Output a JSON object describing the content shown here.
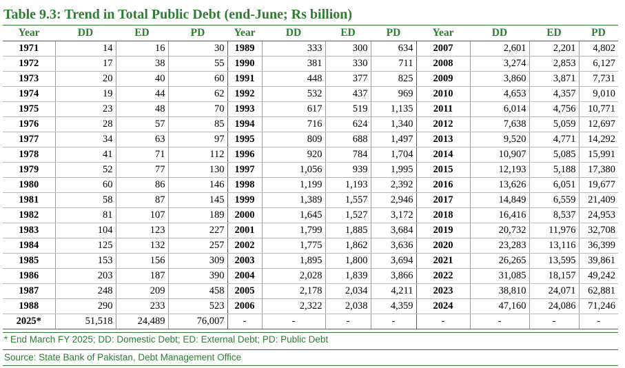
{
  "title": "Table 9.3: Trend in Total Public Debt (end-June; Rs billion)",
  "headers": [
    "Year",
    "DD",
    "ED",
    "PD",
    "Year",
    "DD",
    "ED",
    "PD",
    "Year",
    "DD",
    "ED",
    "PD"
  ],
  "rows": [
    [
      "1971",
      "14",
      "16",
      "30",
      "1989",
      "333",
      "300",
      "634",
      "2007",
      "2,601",
      "2,201",
      "4,802"
    ],
    [
      "1972",
      "17",
      "38",
      "55",
      "1990",
      "381",
      "330",
      "711",
      "2008",
      "3,274",
      "2,853",
      "6,127"
    ],
    [
      "1973",
      "20",
      "40",
      "60",
      "1991",
      "448",
      "377",
      "825",
      "2009",
      "3,860",
      "3,871",
      "7,731"
    ],
    [
      "1974",
      "19",
      "44",
      "62",
      "1992",
      "532",
      "437",
      "969",
      "2010",
      "4,653",
      "4,357",
      "9,010"
    ],
    [
      "1975",
      "23",
      "48",
      "70",
      "1993",
      "617",
      "519",
      "1,135",
      "2011",
      "6,014",
      "4,756",
      "10,771"
    ],
    [
      "1976",
      "28",
      "57",
      "85",
      "1994",
      "716",
      "624",
      "1,340",
      "2012",
      "7,638",
      "5,059",
      "12,697"
    ],
    [
      "1977",
      "34",
      "63",
      "97",
      "1995",
      "809",
      "688",
      "1,497",
      "2013",
      "9,520",
      "4,771",
      "14,292"
    ],
    [
      "1978",
      "41",
      "71",
      "112",
      "1996",
      "920",
      "784",
      "1,704",
      "2014",
      "10,907",
      "5,085",
      "15,991"
    ],
    [
      "1979",
      "52",
      "77",
      "130",
      "1997",
      "1,056",
      "939",
      "1,995",
      "2015",
      "12,193",
      "5,188",
      "17,380"
    ],
    [
      "1980",
      "60",
      "86",
      "146",
      "1998",
      "1,199",
      "1,193",
      "2,392",
      "2016",
      "13,626",
      "6,051",
      "19,677"
    ],
    [
      "1981",
      "58",
      "87",
      "145",
      "1999",
      "1,389",
      "1,557",
      "2,946",
      "2017",
      "14,849",
      "6,559",
      "21,409"
    ],
    [
      "1982",
      "81",
      "107",
      "189",
      "2000",
      "1,645",
      "1,527",
      "3,172",
      "2018",
      "16,416",
      "8,537",
      "24,953"
    ],
    [
      "1983",
      "104",
      "123",
      "227",
      "2001",
      "1,799",
      "1,885",
      "3,684",
      "2019",
      "20,732",
      "11,976",
      "32,708"
    ],
    [
      "1984",
      "125",
      "132",
      "257",
      "2002",
      "1,775",
      "1,862",
      "3,636",
      "2020",
      "23,283",
      "13,116",
      "36,399"
    ],
    [
      "1985",
      "153",
      "156",
      "309",
      "2003",
      "1,895",
      "1,800",
      "3,694",
      "2021",
      "26,265",
      "13,595",
      "39,861"
    ],
    [
      "1986",
      "203",
      "187",
      "390",
      "2004",
      "2,028",
      "1,839",
      "3,866",
      "2022",
      "31,085",
      "18,157",
      "49,242"
    ],
    [
      "1987",
      "248",
      "209",
      "458",
      "2005",
      "2,178",
      "2,034",
      "4,211",
      "2023",
      "38,810",
      "24,071",
      "62,881"
    ],
    [
      "1988",
      "290",
      "233",
      "523",
      "2006",
      "2,322",
      "2,038",
      "4,359",
      "2024",
      "47,160",
      "24,086",
      "71,246"
    ],
    [
      "2025*",
      "51,518",
      "24,489",
      "76,007",
      "-",
      "-",
      "-",
      "-",
      "-",
      "-",
      "-",
      "-"
    ]
  ],
  "note": "* End March FY 2025; DD: Domestic Debt; ED: External Debt; PD: Public Debt",
  "source": "Source: State Bank of Pakistan, Debt Management Office"
}
